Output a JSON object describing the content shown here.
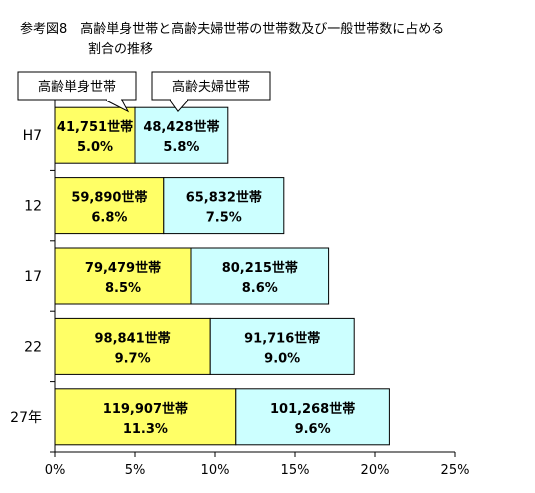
{
  "chart_data": {
    "type": "bar",
    "orientation": "horizontal",
    "stacked": true,
    "title": "参考図8　高齢単身世帯と高齢夫婦世帯の世帯数及び一般世帯数に占める割合の推移",
    "title_lines": [
      "参考図8　高齢単身世帯と高齢夫婦世帯の世帯数及び一般世帯数に占める",
      "割合の推移"
    ],
    "categories": [
      "H7",
      "12",
      "17",
      "22",
      "27年"
    ],
    "series": [
      {
        "name": "高齢単身世帯",
        "color": "#ffff66",
        "values": [
          5.0,
          6.8,
          8.5,
          9.7,
          11.3
        ],
        "count_labels": [
          "41,751世帯",
          "59,890世帯",
          "79,479世帯",
          "98,841世帯",
          "119,907世帯"
        ],
        "pct_labels": [
          "5.0%",
          "6.8%",
          "8.5%",
          "9.7%",
          "11.3%"
        ]
      },
      {
        "name": "高齢夫婦世帯",
        "color": "#ccffff",
        "values": [
          5.8,
          7.5,
          8.6,
          9.0,
          9.6
        ],
        "count_labels": [
          "48,428世帯",
          "65,832世帯",
          "80,215世帯",
          "91,716世帯",
          "101,268世帯"
        ],
        "pct_labels": [
          "5.8%",
          "7.5%",
          "8.6%",
          "9.0%",
          "9.6%"
        ]
      }
    ],
    "xlim": [
      0,
      25
    ],
    "x_ticks": [
      0,
      5,
      10,
      15,
      20,
      25
    ],
    "x_tick_labels": [
      "0%",
      "5%",
      "10%",
      "15%",
      "20%",
      "25%"
    ],
    "grid": false,
    "legend": "callouts above first bar"
  }
}
